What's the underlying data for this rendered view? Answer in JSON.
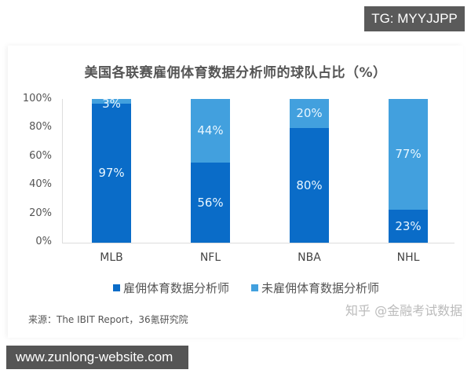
{
  "overlay": {
    "tg_label": "TG: MYYJJPP",
    "site_label": "www.zunlong-website.com"
  },
  "source": "来源：The IBIT Report，36氪研究院",
  "watermark": "知乎 @金融考试数据",
  "colors": {
    "employ": "#0a6cc8",
    "not_employ": "#42a0de"
  },
  "chart_data": {
    "type": "bar",
    "stacked": true,
    "title": "美国各联赛雇佣体育数据分析师的球队占比（%）",
    "xlabel": "",
    "ylabel": "",
    "ylim": [
      0,
      100
    ],
    "yticks": [
      "0%",
      "20%",
      "40%",
      "60%",
      "80%",
      "100%"
    ],
    "categories": [
      "MLB",
      "NFL",
      "NBA",
      "NHL"
    ],
    "series": [
      {
        "name": "雇佣体育数据分析师",
        "values": [
          97,
          56,
          80,
          23
        ],
        "labels": [
          "97%",
          "56%",
          "80%",
          "23%"
        ]
      },
      {
        "name": "未雇佣体育数据分析师",
        "values": [
          3,
          44,
          20,
          77
        ],
        "labels": [
          "3%",
          "44%",
          "20%",
          "77%"
        ]
      }
    ],
    "legend_position": "bottom",
    "grid": false
  }
}
